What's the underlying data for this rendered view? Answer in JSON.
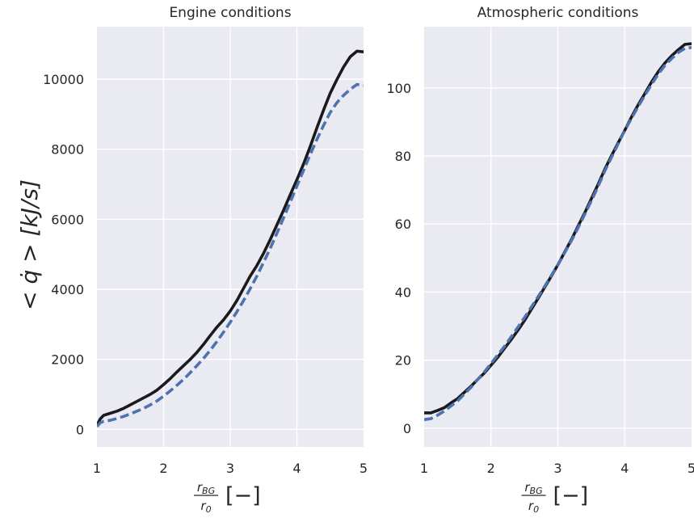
{
  "chart_data": [
    {
      "type": "line",
      "title": "Engine conditions",
      "xlabel": {
        "numerator": "r",
        "numerator_sub": "BG",
        "denominator": "r",
        "denominator_sub": "0",
        "unit": "[−]"
      },
      "ylabel": "< q̇ >  [kJ/s]",
      "xlim": [
        1,
        5
      ],
      "ylim": [
        -500,
        11500
      ],
      "xticks": [
        "1",
        "2",
        "3",
        "4",
        "5"
      ],
      "yticks": [
        "0",
        "2000",
        "4000",
        "6000",
        "8000",
        "10000"
      ],
      "grid": true,
      "series": [
        {
          "style": "solid",
          "color": "#1a1a1a",
          "points": [
            [
              1.0,
              120
            ],
            [
              1.05,
              300
            ],
            [
              1.1,
              400
            ],
            [
              1.2,
              460
            ],
            [
              1.3,
              520
            ],
            [
              1.4,
              600
            ],
            [
              1.5,
              700
            ],
            [
              1.6,
              800
            ],
            [
              1.7,
              900
            ],
            [
              1.8,
              1000
            ],
            [
              1.9,
              1120
            ],
            [
              2.0,
              1280
            ],
            [
              2.1,
              1450
            ],
            [
              2.2,
              1640
            ],
            [
              2.3,
              1820
            ],
            [
              2.4,
              2000
            ],
            [
              2.5,
              2200
            ],
            [
              2.6,
              2430
            ],
            [
              2.7,
              2680
            ],
            [
              2.8,
              2920
            ],
            [
              2.9,
              3130
            ],
            [
              3.0,
              3380
            ],
            [
              3.1,
              3680
            ],
            [
              3.2,
              4030
            ],
            [
              3.3,
              4380
            ],
            [
              3.4,
              4680
            ],
            [
              3.5,
              5030
            ],
            [
              3.6,
              5420
            ],
            [
              3.7,
              5840
            ],
            [
              3.8,
              6260
            ],
            [
              3.9,
              6700
            ],
            [
              4.0,
              7130
            ],
            [
              4.1,
              7580
            ],
            [
              4.2,
              8080
            ],
            [
              4.3,
              8610
            ],
            [
              4.4,
              9120
            ],
            [
              4.5,
              9600
            ],
            [
              4.6,
              9990
            ],
            [
              4.7,
              10350
            ],
            [
              4.8,
              10640
            ],
            [
              4.9,
              10800
            ],
            [
              5.0,
              10780
            ]
          ]
        },
        {
          "style": "dashed",
          "color": "#4c72b0",
          "points": [
            [
              1.0,
              80
            ],
            [
              1.05,
              190
            ],
            [
              1.1,
              230
            ],
            [
              1.2,
              260
            ],
            [
              1.3,
              310
            ],
            [
              1.4,
              370
            ],
            [
              1.5,
              440
            ],
            [
              1.6,
              520
            ],
            [
              1.7,
              600
            ],
            [
              1.8,
              700
            ],
            [
              1.9,
              810
            ],
            [
              2.0,
              950
            ],
            [
              2.1,
              1100
            ],
            [
              2.2,
              1260
            ],
            [
              2.3,
              1430
            ],
            [
              2.4,
              1620
            ],
            [
              2.5,
              1820
            ],
            [
              2.6,
              2030
            ],
            [
              2.7,
              2260
            ],
            [
              2.8,
              2510
            ],
            [
              2.9,
              2780
            ],
            [
              3.0,
              3060
            ],
            [
              3.1,
              3360
            ],
            [
              3.2,
              3680
            ],
            [
              3.3,
              4020
            ],
            [
              3.4,
              4380
            ],
            [
              3.5,
              4770
            ],
            [
              3.6,
              5170
            ],
            [
              3.7,
              5600
            ],
            [
              3.8,
              6040
            ],
            [
              3.9,
              6490
            ],
            [
              4.0,
              6950
            ],
            [
              4.1,
              7400
            ],
            [
              4.2,
              7850
            ],
            [
              4.3,
              8280
            ],
            [
              4.4,
              8680
            ],
            [
              4.5,
              9050
            ],
            [
              4.6,
              9330
            ],
            [
              4.7,
              9540
            ],
            [
              4.8,
              9710
            ],
            [
              4.9,
              9850
            ],
            [
              5.0,
              9820
            ]
          ]
        }
      ]
    },
    {
      "type": "line",
      "title": "Atmospheric conditions",
      "xlabel": {
        "numerator": "r",
        "numerator_sub": "BG",
        "denominator": "r",
        "denominator_sub": "0",
        "unit": "[−]"
      },
      "ylabel": "",
      "xlim": [
        1,
        5
      ],
      "ylim": [
        -5.5,
        118
      ],
      "xticks": [
        "1",
        "2",
        "3",
        "4",
        "5"
      ],
      "yticks": [
        "0",
        "20",
        "40",
        "60",
        "80",
        "100"
      ],
      "grid": true,
      "series": [
        {
          "style": "solid",
          "color": "#1a1a1a",
          "points": [
            [
              1.0,
              4.5
            ],
            [
              1.1,
              4.5
            ],
            [
              1.2,
              5.2
            ],
            [
              1.3,
              6.0
            ],
            [
              1.4,
              7.4
            ],
            [
              1.5,
              8.7
            ],
            [
              1.6,
              10.5
            ],
            [
              1.7,
              12.3
            ],
            [
              1.8,
              14.3
            ],
            [
              1.9,
              16.2
            ],
            [
              2.0,
              18.5
            ],
            [
              2.1,
              20.8
            ],
            [
              2.2,
              23.4
            ],
            [
              2.3,
              26.0
            ],
            [
              2.4,
              28.7
            ],
            [
              2.5,
              31.6
            ],
            [
              2.6,
              34.8
            ],
            [
              2.7,
              38.0
            ],
            [
              2.8,
              41.3
            ],
            [
              2.9,
              44.6
            ],
            [
              3.0,
              48.0
            ],
            [
              3.1,
              51.7
            ],
            [
              3.2,
              55.3
            ],
            [
              3.3,
              59.3
            ],
            [
              3.4,
              63.2
            ],
            [
              3.5,
              67.4
            ],
            [
              3.6,
              71.6
            ],
            [
              3.7,
              76.0
            ],
            [
              3.8,
              80.0
            ],
            [
              3.9,
              83.8
            ],
            [
              4.0,
              87.5
            ],
            [
              4.1,
              91.4
            ],
            [
              4.2,
              95.0
            ],
            [
              4.3,
              98.3
            ],
            [
              4.4,
              101.7
            ],
            [
              4.5,
              104.7
            ],
            [
              4.6,
              107.3
            ],
            [
              4.7,
              109.4
            ],
            [
              4.8,
              111.2
            ],
            [
              4.9,
              112.8
            ],
            [
              5.0,
              113.0
            ]
          ]
        },
        {
          "style": "dashed",
          "color": "#4c72b0",
          "points": [
            [
              1.0,
              2.5
            ],
            [
              1.1,
              2.8
            ],
            [
              1.2,
              3.8
            ],
            [
              1.3,
              5.0
            ],
            [
              1.4,
              6.5
            ],
            [
              1.5,
              8.0
            ],
            [
              1.6,
              10.0
            ],
            [
              1.7,
              12.0
            ],
            [
              1.8,
              14.3
            ],
            [
              1.9,
              16.5
            ],
            [
              2.0,
              19.0
            ],
            [
              2.1,
              21.5
            ],
            [
              2.2,
              24.0
            ],
            [
              2.3,
              26.8
            ],
            [
              2.4,
              29.6
            ],
            [
              2.5,
              32.5
            ],
            [
              2.6,
              35.5
            ],
            [
              2.7,
              38.5
            ],
            [
              2.8,
              41.6
            ],
            [
              2.9,
              44.8
            ],
            [
              3.0,
              48.0
            ],
            [
              3.1,
              51.5
            ],
            [
              3.2,
              55.0
            ],
            [
              3.3,
              58.8
            ],
            [
              3.4,
              62.8
            ],
            [
              3.5,
              66.8
            ],
            [
              3.6,
              71.0
            ],
            [
              3.7,
              75.5
            ],
            [
              3.8,
              79.5
            ],
            [
              3.9,
              83.5
            ],
            [
              4.0,
              87.5
            ],
            [
              4.1,
              91.0
            ],
            [
              4.2,
              94.5
            ],
            [
              4.3,
              97.8
            ],
            [
              4.4,
              101.0
            ],
            [
              4.5,
              104.0
            ],
            [
              4.6,
              106.6
            ],
            [
              4.7,
              108.6
            ],
            [
              4.8,
              110.4
            ],
            [
              4.9,
              111.6
            ],
            [
              5.0,
              111.9
            ]
          ]
        }
      ]
    }
  ]
}
